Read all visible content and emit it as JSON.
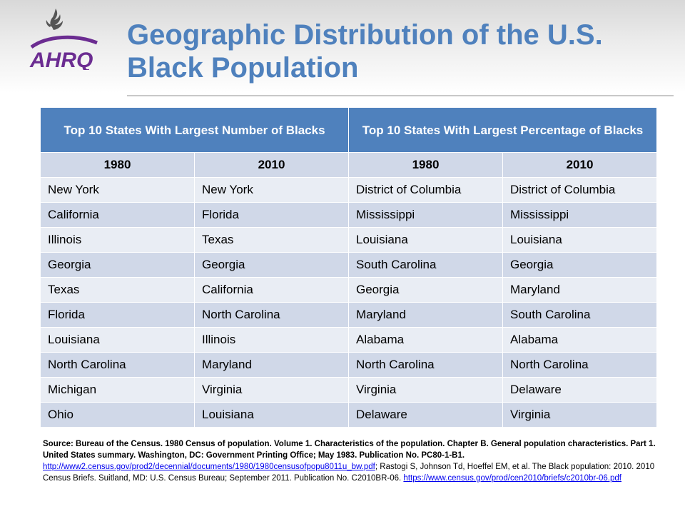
{
  "title_lines": [
    "Geographic Distribution of the U.S.",
    "Black Population"
  ],
  "logo_text": "AHRQ",
  "table": {
    "group_headers": [
      "Top 10 States With Largest Number of Blacks",
      "Top 10 States With Largest Percentage of Blacks"
    ],
    "years": [
      "1980",
      "2010",
      "1980",
      "2010"
    ],
    "rows": [
      [
        "New York",
        "New York",
        "District of Columbia",
        "District of Columbia"
      ],
      [
        "California",
        "Florida",
        "Mississippi",
        "Mississippi"
      ],
      [
        "Illinois",
        "Texas",
        "Louisiana",
        "Louisiana"
      ],
      [
        "Georgia",
        "Georgia",
        "South Carolina",
        "Georgia"
      ],
      [
        "Texas",
        "California",
        "Georgia",
        "Maryland"
      ],
      [
        "Florida",
        "North Carolina",
        "Maryland",
        "South Carolina"
      ],
      [
        "Louisiana",
        "Illinois",
        "Alabama",
        "Alabama"
      ],
      [
        "North Carolina",
        "Maryland",
        "North Carolina",
        "North Carolina"
      ],
      [
        "Michigan",
        "Virginia",
        "Virginia",
        "Delaware"
      ],
      [
        "Ohio",
        "Louisiana",
        "Delaware",
        "Virginia"
      ]
    ]
  },
  "source": {
    "bold_text": "Source: Bureau of the Census. 1980 Census of population. Volume 1. Characteristics of the population. Chapter B. General population characteristics. Part 1. United States summary. Washington, DC: Government Printing Office; May 1983. Publication No. PC80-1-B1.",
    "link1": "http://www2.census.gov/prod2/decennial/documents/1980/1980censusofpopu8011u_bw.pdf",
    "middle_text": "; Rastogi S, Johnson Td, Hoeffel EM, et al. The Black population: 2010. 2010 Census Briefs. Suitland, MD: U.S. Census Bureau; September 2011. Publication No. C2010BR-06.",
    "link2": "https://www.census.gov/prod/cen2010/briefs/c2010br-06.pdf"
  },
  "colors": {
    "title": "#4f81bd",
    "header_bg": "#4f81bd",
    "row_light": "#e9edf4",
    "row_dark": "#d0d8e8",
    "logo_purple": "#6b2c91"
  }
}
